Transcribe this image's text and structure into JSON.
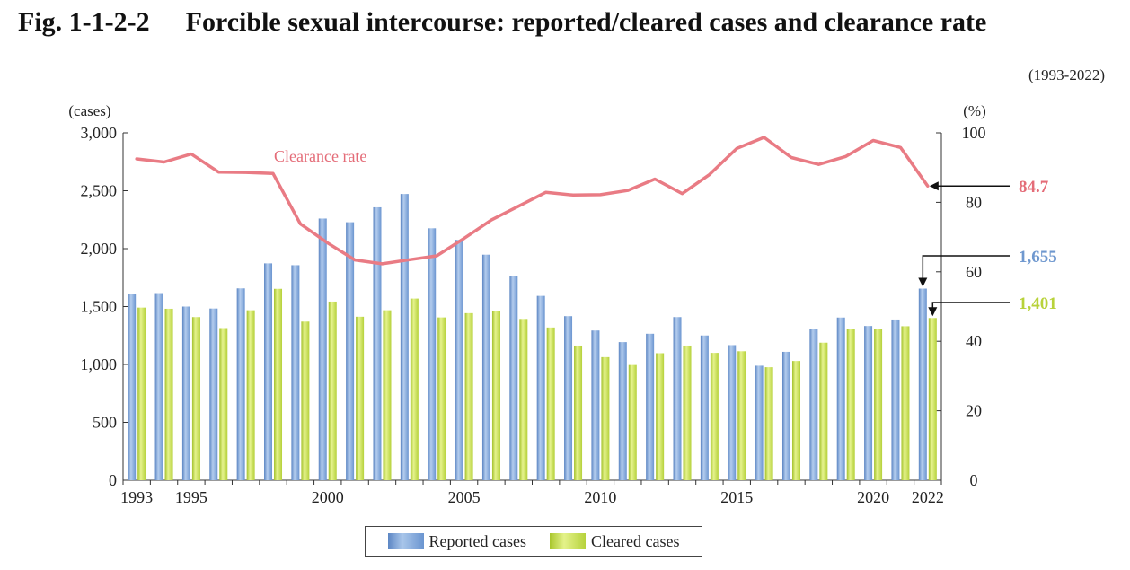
{
  "figure": {
    "number": "Fig. 1-1-2-2",
    "title": "Forcible sexual intercourse: reported/cleared cases and clearance rate",
    "period": "(1993-2022)"
  },
  "colors": {
    "reported": "#7fa6da",
    "cleared": "#c8df52",
    "rate": "#e97b84",
    "reported_label": "#6f98cf",
    "cleared_label": "#b8d23a",
    "rate_label": "#e46c78"
  },
  "chart_data": {
    "type": "bar",
    "title": "Forcible sexual intercourse: reported/cleared cases and clearance rate",
    "x": [
      1993,
      1994,
      1995,
      1996,
      1997,
      1998,
      1999,
      2000,
      2001,
      2002,
      2003,
      2004,
      2005,
      2006,
      2007,
      2008,
      2009,
      2010,
      2011,
      2012,
      2013,
      2014,
      2015,
      2016,
      2017,
      2018,
      2019,
      2020,
      2021,
      2022
    ],
    "x_tick_labels": [
      "1993",
      "1995",
      "2000",
      "2005",
      "2010",
      "2015",
      "2020",
      "2022"
    ],
    "x_tick_years": [
      1993,
      1995,
      2000,
      2005,
      2010,
      2015,
      2020,
      2022
    ],
    "series": [
      {
        "name": "Reported cases",
        "type": "bar",
        "axis": "left",
        "values": [
          1611,
          1616,
          1500,
          1483,
          1657,
          1873,
          1857,
          2260,
          2228,
          2357,
          2472,
          2176,
          2076,
          1948,
          1766,
          1592,
          1417,
          1293,
          1193,
          1265,
          1409,
          1250,
          1167,
          989,
          1109,
          1307,
          1405,
          1332,
          1388,
          1655
        ]
      },
      {
        "name": "Cleared cases",
        "type": "bar",
        "axis": "left",
        "values": [
          1491,
          1481,
          1409,
          1314,
          1468,
          1653,
          1370,
          1543,
          1412,
          1468,
          1569,
          1406,
          1443,
          1460,
          1393,
          1319,
          1163,
          1063,
          995,
          1097,
          1163,
          1100,
          1114,
          976,
          1030,
          1188,
          1309,
          1303,
          1330,
          1401
        ]
      },
      {
        "name": "Clearance rate",
        "type": "line",
        "axis": "right",
        "values": [
          92.5,
          91.6,
          93.9,
          88.7,
          88.6,
          88.3,
          73.8,
          68.3,
          63.4,
          62.3,
          63.5,
          64.6,
          69.6,
          74.9,
          78.9,
          82.9,
          82.1,
          82.2,
          83.4,
          86.7,
          82.5,
          88.0,
          95.5,
          98.7,
          92.9,
          90.9,
          93.2,
          97.8,
          95.8,
          84.7
        ]
      }
    ],
    "y_left": {
      "label": "(cases)",
      "ylim": [
        0,
        3000
      ],
      "ticks": [
        0,
        500,
        1000,
        1500,
        2000,
        2500,
        3000
      ],
      "tick_labels": [
        "0",
        "500",
        "1,000",
        "1,500",
        "2,000",
        "2,500",
        "3,000"
      ]
    },
    "y_right": {
      "label": "(%)",
      "ylim": [
        0,
        100
      ],
      "ticks": [
        0,
        20,
        40,
        60,
        80,
        100
      ],
      "tick_labels": [
        "0",
        "20",
        "40",
        "60",
        "80",
        "100"
      ]
    },
    "annotations": {
      "line_label": "Clearance rate",
      "last_rate": "84.7",
      "last_reported": "1,655",
      "last_cleared": "1,401"
    },
    "legend": {
      "position": "bottom",
      "items": [
        "Reported cases",
        "Cleared cases"
      ]
    },
    "grid": false
  }
}
